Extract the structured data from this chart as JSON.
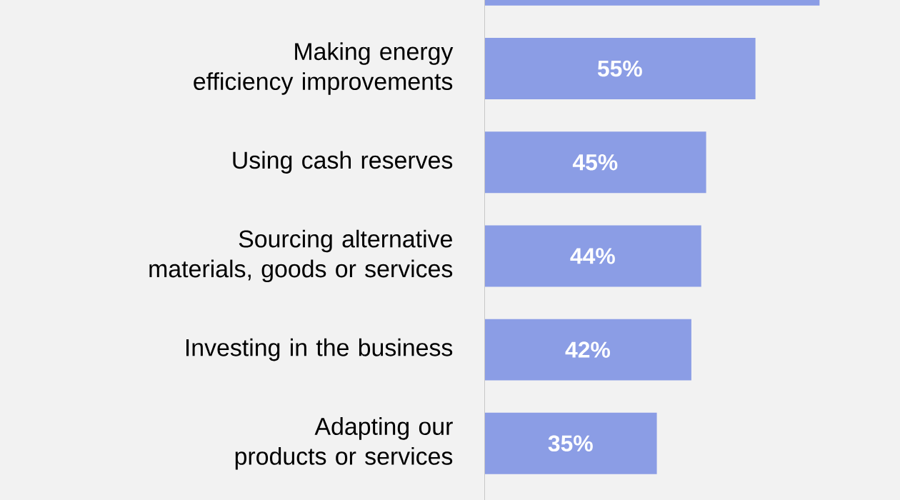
{
  "chart_data": {
    "type": "bar",
    "orientation": "horizontal",
    "categories": [
      null,
      "Making energy efficiency improvements",
      "Using cash reserves",
      "Sourcing alternative materials, goods or services",
      "Investing in the business",
      "Adapting our products or services"
    ],
    "values": [
      68,
      55,
      45,
      44,
      42,
      35
    ],
    "value_labels": [
      null,
      "55%",
      "45%",
      "44%",
      "42%",
      "35%"
    ],
    "color": "#8b9de5",
    "tick_labels": "y"
  }
}
